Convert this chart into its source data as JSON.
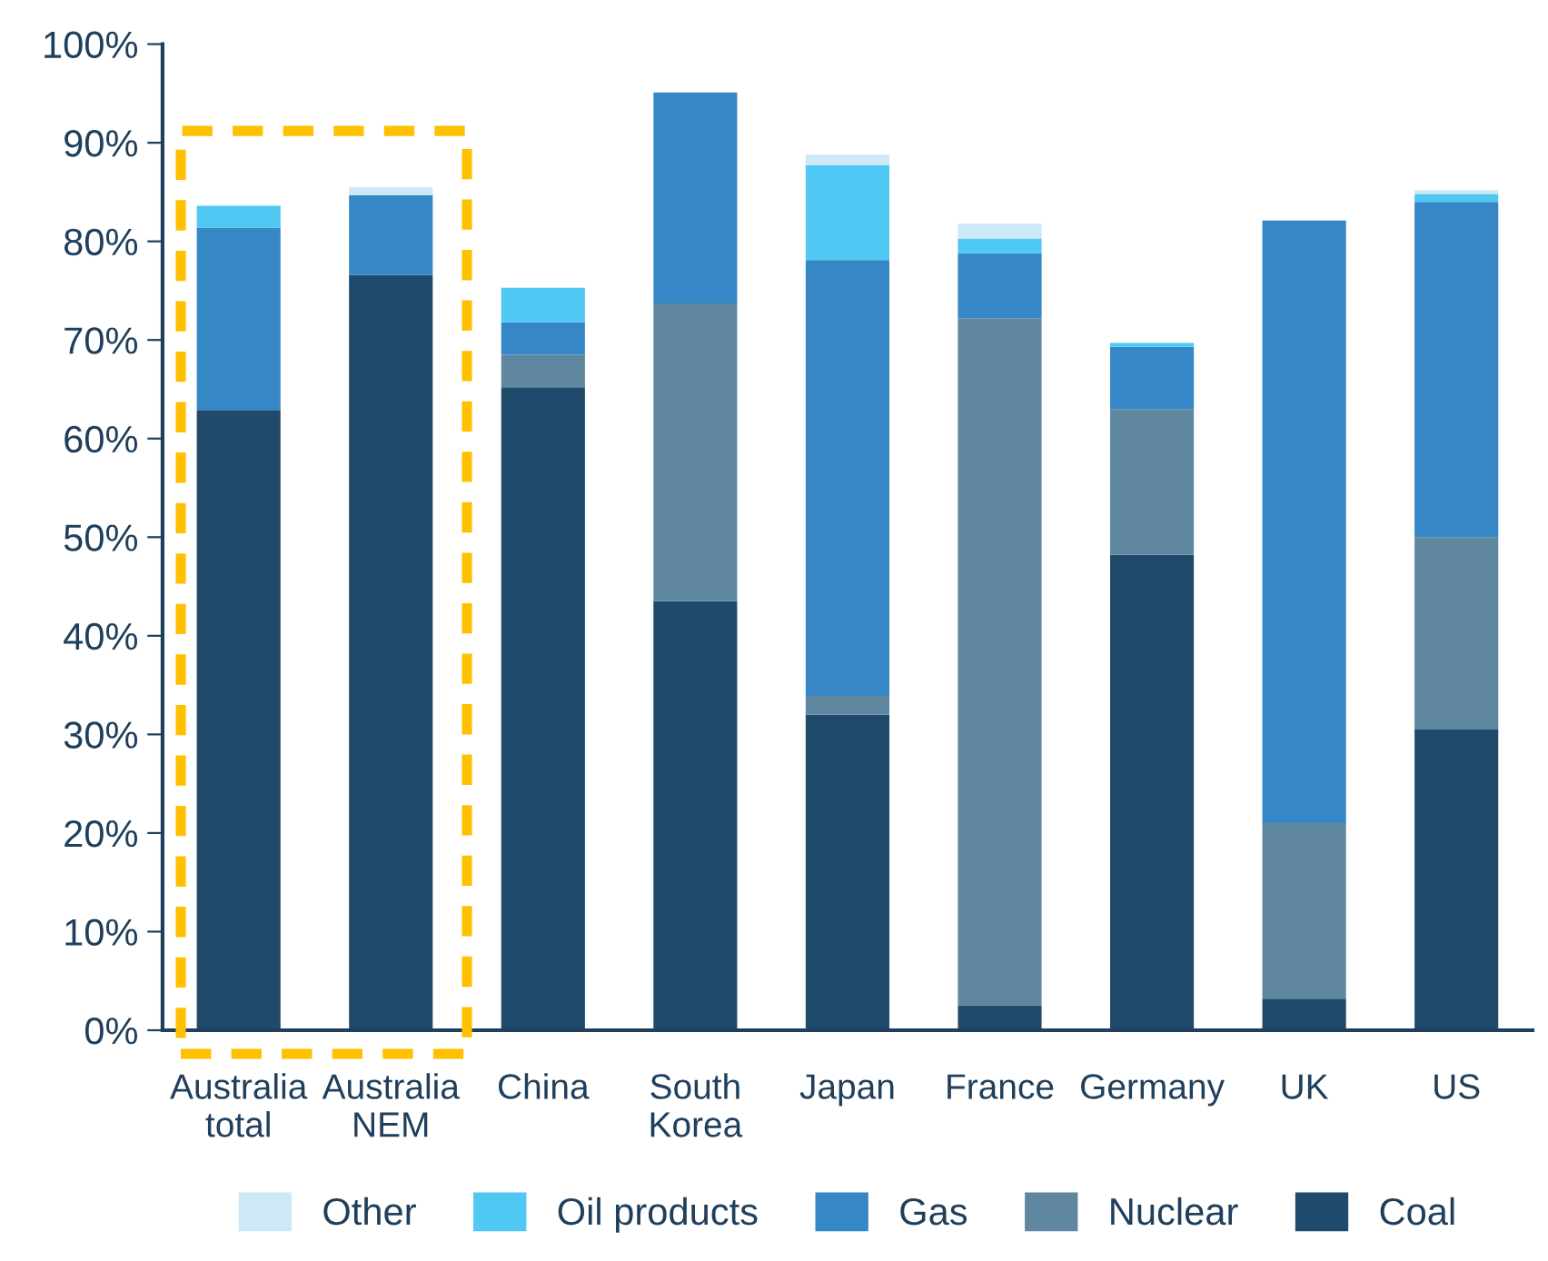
{
  "chart_data": {
    "type": "bar",
    "stacked": true,
    "categories": [
      "Australia\ntotal",
      "Australia\nNEM",
      "China",
      "South\nKorea",
      "Japan",
      "France",
      "Germany",
      "UK",
      "US"
    ],
    "series": [
      {
        "name": "Coal",
        "color": "#1f4a6b",
        "values": [
          62.9,
          76.6,
          65.2,
          43.5,
          32.0,
          2.5,
          48.2,
          3.2,
          30.5
        ]
      },
      {
        "name": "Nuclear",
        "color": "#5f879f",
        "values": [
          0,
          0,
          3.3,
          30.2,
          1.9,
          69.7,
          14.8,
          17.8,
          19.5
        ]
      },
      {
        "name": "Gas",
        "color": "#3588c5",
        "values": [
          18.5,
          8.1,
          3.3,
          21.4,
          44.2,
          6.6,
          6.3,
          61.1,
          34.0
        ]
      },
      {
        "name": "Oil products",
        "color": "#4fc8f4",
        "values": [
          2.2,
          0,
          3.5,
          0,
          9.6,
          1.5,
          0.4,
          0,
          0.8
        ]
      },
      {
        "name": "Other",
        "color": "#cde8f7",
        "values": [
          0,
          0.8,
          0,
          0,
          1.1,
          1.5,
          0,
          0,
          0.4
        ]
      }
    ],
    "ylim": [
      0,
      100
    ],
    "yticks": [
      {
        "value": 0,
        "label": "0%"
      },
      {
        "value": 10,
        "label": "10%"
      },
      {
        "value": 20,
        "label": "20%"
      },
      {
        "value": 30,
        "label": "30%"
      },
      {
        "value": 40,
        "label": "40%"
      },
      {
        "value": 50,
        "label": "50%"
      },
      {
        "value": 60,
        "label": "60%"
      },
      {
        "value": 70,
        "label": "70%"
      },
      {
        "value": 80,
        "label": "80%"
      },
      {
        "value": 90,
        "label": "90%"
      },
      {
        "value": 100,
        "label": "100%"
      }
    ],
    "grid": false,
    "legend": "bottom"
  }
}
